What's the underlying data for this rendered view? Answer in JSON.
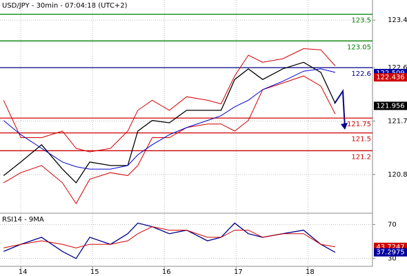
{
  "chart_data": [
    {
      "type": "line",
      "title": "USD/JPY - 30min - 07:04:18 (UTC+2)",
      "x": [
        13.76,
        14,
        14.29,
        14.58,
        14.77,
        14.96,
        15.25,
        15.49,
        15.63,
        15.83,
        16.07,
        16.31,
        16.6,
        16.79,
        16.98,
        17.17,
        17.37,
        17.65,
        17.94,
        18.18,
        18.38
      ],
      "xlim": [
        13.71,
        18.9
      ],
      "ylim": [
        120.17,
        123.74
      ],
      "yticks": [
        120.8,
        121.7,
        122.6,
        123.4
      ],
      "grid": true,
      "series": [
        {
          "color": "#000000",
          "values": [
            120.78,
            121.01,
            121.3,
            120.89,
            120.66,
            121.01,
            120.95,
            120.95,
            121.53,
            121.71,
            121.67,
            121.88,
            121.88,
            121.88,
            122.4,
            122.58,
            122.4,
            122.58,
            122.69,
            122.52,
            122.0
          ]
        },
        {
          "color": "#d00000",
          "values": [
            122.05,
            121.42,
            121.42,
            121.53,
            121.24,
            121.18,
            121.24,
            121.53,
            121.88,
            122.05,
            121.88,
            122.11,
            122.05,
            121.99,
            122.46,
            122.81,
            122.69,
            122.75,
            122.92,
            122.9,
            122.63
          ]
        },
        {
          "color": "#d00000",
          "values": [
            120.66,
            120.83,
            120.95,
            120.66,
            120.31,
            120.72,
            120.83,
            120.78,
            120.95,
            121.42,
            121.42,
            121.59,
            121.65,
            121.65,
            121.53,
            121.71,
            122.23,
            122.34,
            122.46,
            122.29,
            121.82
          ]
        },
        {
          "color": "#0000cc",
          "values": [
            121.71,
            121.47,
            121.24,
            121.01,
            120.93,
            120.89,
            120.89,
            120.95,
            121.13,
            121.3,
            121.47,
            121.59,
            121.71,
            121.79,
            121.94,
            122.05,
            122.23,
            122.37,
            122.54,
            122.58,
            122.52
          ]
        }
      ],
      "levels": [
        {
          "value": 123.5,
          "color": "#008000"
        },
        {
          "value": 123.05,
          "color": "#008000"
        },
        {
          "value": 122.6,
          "color": "#000080"
        },
        {
          "value": 121.75,
          "color": "#cc0000"
        },
        {
          "value": 121.5,
          "color": "#cc0000"
        },
        {
          "value": 121.2,
          "color": "#cc0000"
        }
      ],
      "markers": [
        {
          "value": 122.509,
          "color": "#0000a0"
        },
        {
          "value": 122.436,
          "color": "#d00000"
        },
        {
          "value": 121.956,
          "color": "#000000"
        }
      ]
    },
    {
      "type": "line",
      "title": "RSI14 - 9MA",
      "x": [
        13.76,
        14,
        14.29,
        14.58,
        14.77,
        14.96,
        15.25,
        15.49,
        15.63,
        15.83,
        16.07,
        16.31,
        16.6,
        16.79,
        16.98,
        17.17,
        17.37,
        17.65,
        17.94,
        18.18,
        18.38
      ],
      "xlim": [
        13.71,
        18.9
      ],
      "xticks": [
        14,
        15,
        16,
        17,
        18
      ],
      "ylim": [
        20.8,
        82.5
      ],
      "yticks": [
        30,
        70
      ],
      "grid": true,
      "series": [
        {
          "color": "#00008b",
          "values": [
            38.3,
            46.7,
            55,
            38.3,
            30,
            55,
            46.7,
            59.2,
            71.7,
            67.5,
            59.2,
            63.3,
            50.8,
            55,
            71.7,
            59.2,
            55,
            59.2,
            63.3,
            46.7,
            37.3
          ]
        },
        {
          "color": "#d00000",
          "values": [
            42.5,
            46.7,
            50.8,
            46.7,
            42.5,
            46.7,
            46.7,
            50.8,
            59.2,
            67.5,
            63.3,
            63.3,
            55,
            55,
            63.3,
            63.3,
            55,
            59.2,
            59.2,
            46.7,
            43.7
          ]
        }
      ],
      "markers": [
        {
          "value": 43.7247,
          "color": "#d00000"
        },
        {
          "value": 37.2975,
          "color": "#0000a0"
        }
      ]
    }
  ]
}
